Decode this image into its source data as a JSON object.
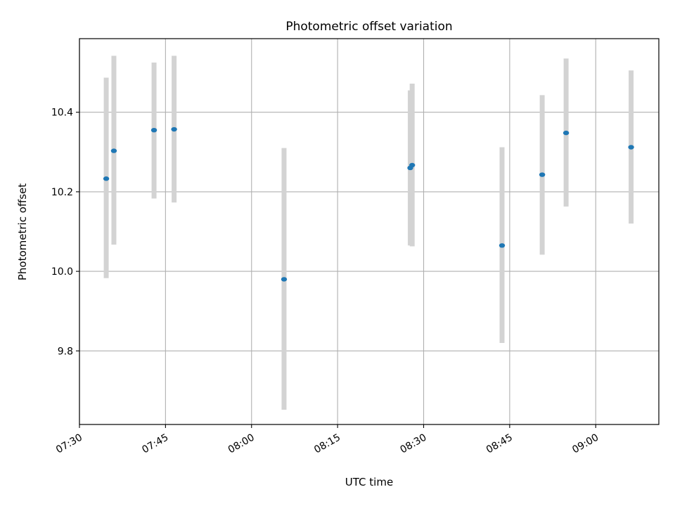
{
  "chart_data": {
    "type": "scatter",
    "title": "Photometric offset variation",
    "xlabel": "UTC time",
    "ylabel": "Photometric offset",
    "x_ticks": [
      "07:30",
      "07:45",
      "08:00",
      "08:15",
      "08:30",
      "08:45",
      "09:00"
    ],
    "x_tick_minutes": [
      450,
      465,
      480,
      495,
      510,
      525,
      540
    ],
    "y_ticks": [
      "9.8",
      "10.0",
      "10.2",
      "10.4"
    ],
    "y_tick_values": [
      9.8,
      10.0,
      10.2,
      10.4
    ],
    "xlim": [
      "07:30",
      "09:11"
    ],
    "ylim": [
      9.615,
      10.585
    ],
    "grid": true,
    "point_color": "#1f77b4",
    "errorbar_color": "#d3d3d3",
    "series": [
      {
        "points": [
          {
            "time": "07:34:40",
            "y": 10.233,
            "err_low": 9.983,
            "err_high": 10.487
          },
          {
            "time": "07:36:00",
            "y": 10.303,
            "err_low": 10.067,
            "err_high": 10.542
          },
          {
            "time": "07:43:00",
            "y": 10.355,
            "err_low": 10.183,
            "err_high": 10.525
          },
          {
            "time": "07:46:30",
            "y": 10.357,
            "err_low": 10.173,
            "err_high": 10.542
          },
          {
            "time": "08:05:40",
            "y": 9.98,
            "err_low": 9.652,
            "err_high": 10.31
          },
          {
            "time": "08:27:40",
            "y": 10.26,
            "err_low": 10.065,
            "err_high": 10.455
          },
          {
            "time": "08:28:00",
            "y": 10.267,
            "err_low": 10.063,
            "err_high": 10.472
          },
          {
            "time": "08:43:40",
            "y": 10.065,
            "err_low": 9.82,
            "err_high": 10.312
          },
          {
            "time": "08:50:40",
            "y": 10.243,
            "err_low": 10.042,
            "err_high": 10.443
          },
          {
            "time": "08:54:50",
            "y": 10.348,
            "err_low": 10.163,
            "err_high": 10.535
          },
          {
            "time": "09:06:10",
            "y": 10.312,
            "err_low": 10.12,
            "err_high": 10.505
          }
        ]
      }
    ]
  }
}
